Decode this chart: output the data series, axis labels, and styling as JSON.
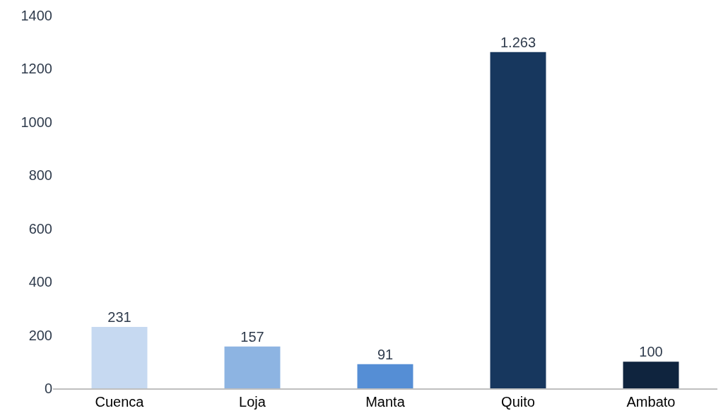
{
  "chart_data": {
    "type": "bar",
    "categories": [
      "Cuenca",
      "Loja",
      "Manta",
      "Quito",
      "Ambato"
    ],
    "values": [
      231,
      157,
      91,
      1263,
      100
    ],
    "value_labels": [
      "231",
      "157",
      "91",
      "1.263",
      "100"
    ],
    "colors": [
      "#c6d9f1",
      "#8db4e2",
      "#558ed5",
      "#17375e",
      "#0f243e"
    ],
    "ylim": [
      0,
      1400
    ],
    "yticks": [
      0,
      200,
      400,
      600,
      800,
      1000,
      1200,
      1400
    ]
  }
}
